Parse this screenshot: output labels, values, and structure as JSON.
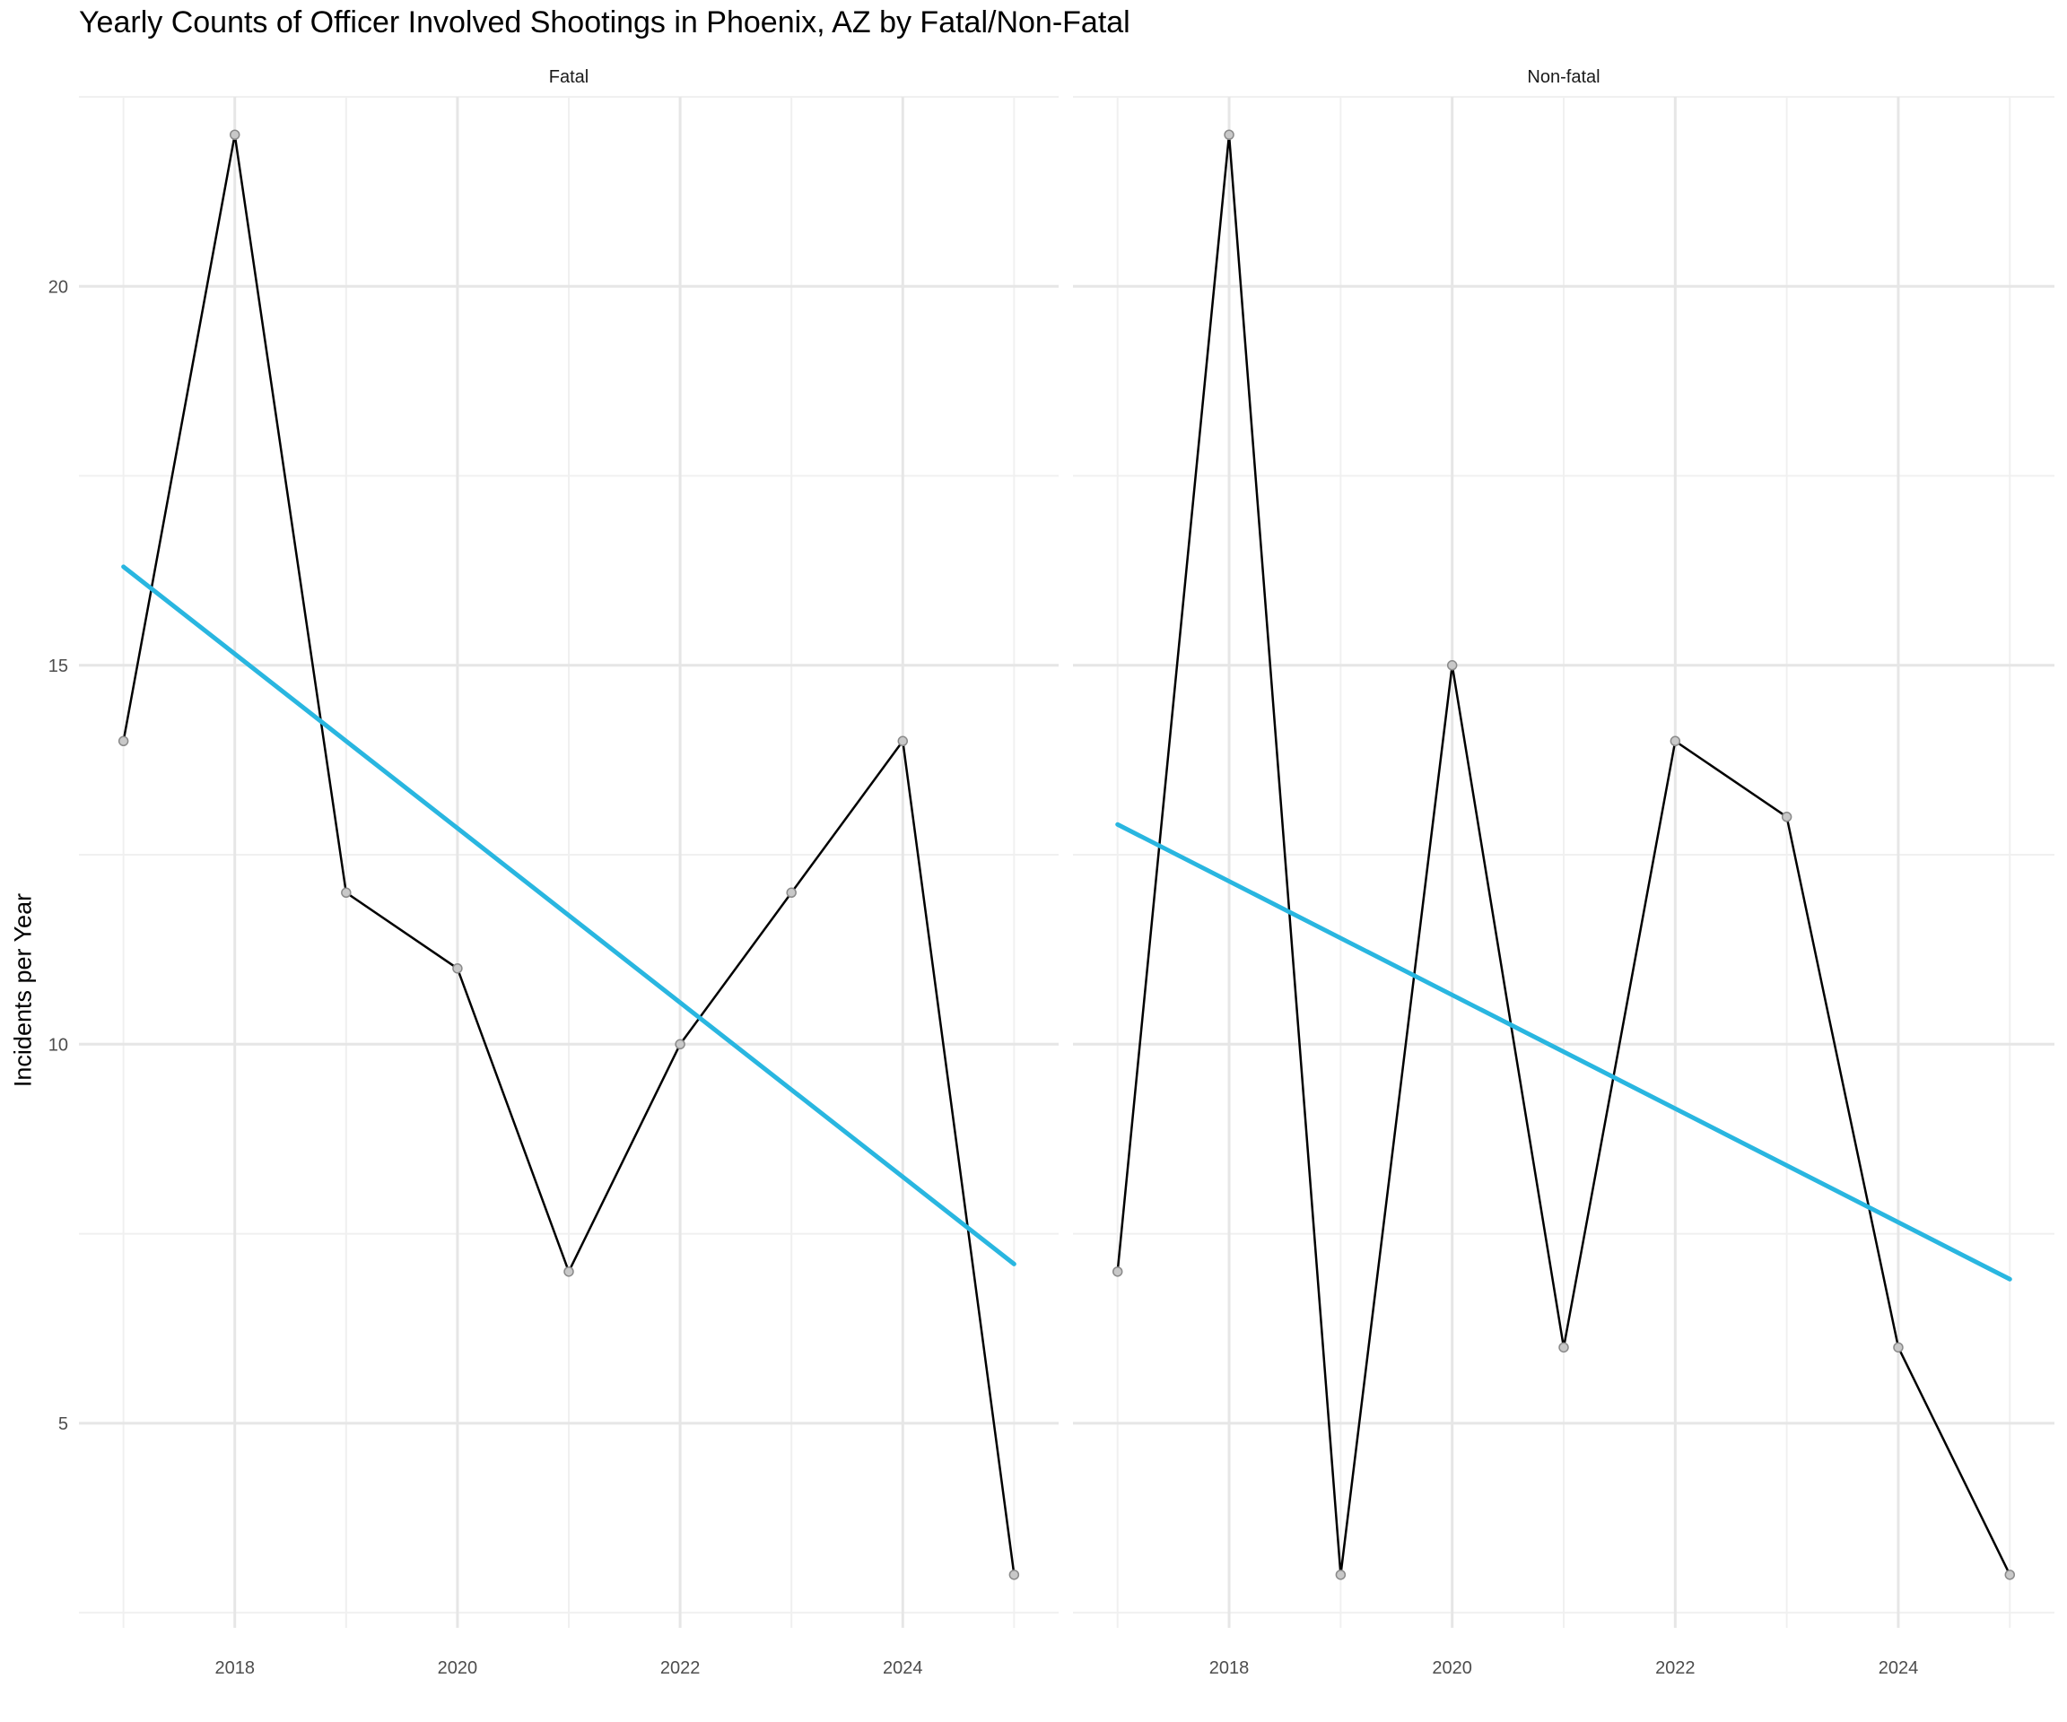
{
  "chart_data": {
    "type": "line",
    "title": "Yearly Counts of Officer Involved Shootings in Phoenix, AZ by Fatal/Non-Fatal",
    "xlabel": "",
    "ylabel": "Incidents per Year",
    "xlim": [
      2016.6,
      2025.4
    ],
    "ylim": [
      2.3,
      22.5
    ],
    "x_ticks": [
      2018,
      2020,
      2022,
      2024
    ],
    "y_ticks": [
      5,
      10,
      15,
      20
    ],
    "grid": true,
    "line_color": "#000000",
    "trend_color": "#29B6E0",
    "panels": [
      {
        "name": "Fatal",
        "x": [
          2017,
          2018,
          2019,
          2020,
          2021,
          2022,
          2023,
          2024,
          2025
        ],
        "y": [
          14,
          22,
          12,
          11,
          7,
          10,
          12,
          14,
          3
        ],
        "trend": {
          "x": [
            2017,
            2025
          ],
          "y": [
            16.3,
            7.1
          ]
        }
      },
      {
        "name": "Non-fatal",
        "x": [
          2017,
          2018,
          2019,
          2020,
          2021,
          2022,
          2023,
          2024,
          2025
        ],
        "y": [
          7,
          22,
          3,
          15,
          6,
          14,
          13,
          6,
          3
        ],
        "trend": {
          "x": [
            2017,
            2025
          ],
          "y": [
            12.9,
            6.9
          ]
        }
      }
    ]
  }
}
